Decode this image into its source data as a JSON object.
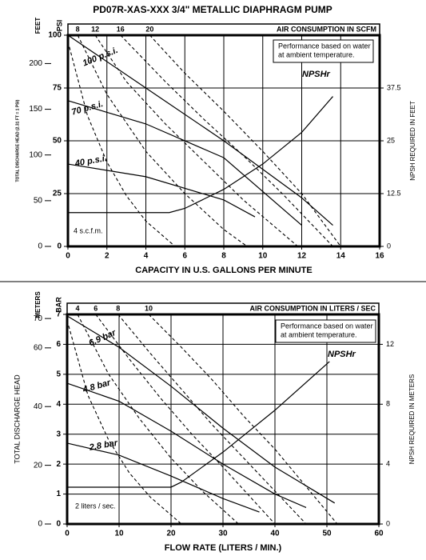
{
  "chart_data": [
    {
      "type": "line",
      "title": "PD07R-XAS-XXX  3/4\" METALLIC DIAPHRAGM PUMP",
      "top_axis_label": "AIR CONSUMPTION IN SCFM",
      "xlabel": "CAPACITY IN U.S. GALLONS PER MINUTE",
      "ylabel": "PSI",
      "head_label": "FEET",
      "head_title": "TOTAL DISCHARGE HEAD (2.31 FT = 1 PSI)",
      "y2label": "NPSH REQUIRED IN FEET",
      "note": [
        "Performance based on water",
        "at ambient temperature."
      ],
      "grid": true,
      "xlim": [
        0,
        16
      ],
      "xticks": [
        0,
        2,
        4,
        6,
        8,
        10,
        12,
        14,
        16
      ],
      "ylim": [
        0,
        100
      ],
      "yticks": [
        0,
        25,
        50,
        75,
        100
      ],
      "head_lim": [
        0,
        231
      ],
      "head_ticks": [
        0,
        50,
        100,
        150,
        200
      ],
      "y2lim": [
        0,
        50
      ],
      "y2ticks": [
        0,
        12.5,
        25,
        37.5
      ],
      "top_ticks": [
        {
          "value": 0.5,
          "label": "8"
        },
        {
          "value": 1.4,
          "label": "12"
        },
        {
          "value": 2.7,
          "label": "16"
        },
        {
          "value": 4.2,
          "label": "20"
        }
      ],
      "series": [
        {
          "name": "100 p.s.i.",
          "color": "#000000",
          "x": [
            0,
            4,
            8,
            12,
            13.6
          ],
          "values": [
            100,
            75,
            50,
            23,
            10
          ]
        },
        {
          "name": "70 p.s.i.",
          "color": "#000000",
          "x": [
            0,
            4,
            8,
            12
          ],
          "values": [
            69,
            58,
            42,
            10
          ]
        },
        {
          "name": "40 p.s.i.",
          "color": "#000000",
          "x": [
            0,
            4,
            8,
            9.6
          ],
          "values": [
            39,
            33,
            22,
            14
          ]
        },
        {
          "name": "NPSHr",
          "color": "#000000",
          "axis": "y2",
          "x": [
            0,
            5.2,
            6,
            8,
            10,
            12,
            13.6
          ],
          "values": [
            8,
            8,
            9,
            13.5,
            19.5,
            27,
            35.5
          ]
        },
        {
          "name": "4 s.c.f.m.",
          "color": "#000000",
          "dash": true,
          "x": [
            0,
            1,
            2,
            3,
            4,
            5.5
          ],
          "values": [
            97,
            62,
            40,
            24,
            12,
            0
          ]
        },
        {
          "color": "#000000",
          "dash": true,
          "x": [
            0.5,
            2,
            4,
            6,
            8,
            9.2
          ],
          "values": [
            100,
            72,
            45,
            25,
            8,
            0
          ]
        },
        {
          "color": "#000000",
          "dash": true,
          "x": [
            1.4,
            3,
            5,
            7,
            9,
            11.8
          ],
          "values": [
            100,
            78,
            58,
            40,
            22,
            0
          ]
        },
        {
          "color": "#000000",
          "dash": true,
          "x": [
            2.7,
            5,
            7,
            9,
            11,
            13.6
          ],
          "values": [
            100,
            78,
            60,
            43,
            25,
            0
          ]
        },
        {
          "color": "#000000",
          "dash": true,
          "x": [
            4.2,
            6,
            8,
            10,
            12,
            14
          ],
          "values": [
            100,
            82,
            64,
            45,
            25,
            0
          ]
        }
      ]
    },
    {
      "type": "line",
      "top_axis_label": "AIR CONSUMPTION IN LITERS / SEC",
      "xlabel": "FLOW RATE (LITERS / MIN.)",
      "ylabel": "BAR",
      "head_label": "METERS",
      "head_title": "TOTAL DISCHARGE HEAD",
      "y2label": "NPSH REQUIRED IN METERS",
      "note": [
        "Performance based on water",
        "at ambient temperature."
      ],
      "grid": true,
      "xlim": [
        0,
        60
      ],
      "xticks": [
        0,
        10,
        20,
        30,
        40,
        50,
        60
      ],
      "ylim": [
        0,
        7
      ],
      "yticks": [
        0,
        1,
        2,
        3,
        4,
        5,
        6,
        7
      ],
      "head_lim": [
        0,
        71.4
      ],
      "head_ticks": [
        0,
        20,
        40,
        60,
        70
      ],
      "y2lim": [
        0,
        14
      ],
      "y2ticks": [
        0,
        4,
        8,
        12
      ],
      "top_ticks": [
        {
          "value": 2,
          "label": "4"
        },
        {
          "value": 5.5,
          "label": "6"
        },
        {
          "value": 9.8,
          "label": "8"
        },
        {
          "value": 15.7,
          "label": "10"
        }
      ],
      "series": [
        {
          "name": "6.9 bar",
          "color": "#000000",
          "x": [
            0,
            10,
            20,
            30,
            40,
            51.5
          ],
          "values": [
            6.95,
            5.9,
            4.6,
            3.2,
            1.9,
            0.7
          ]
        },
        {
          "name": "4.8 bar",
          "color": "#000000",
          "x": [
            0,
            10,
            20,
            30,
            40,
            46
          ],
          "values": [
            4.7,
            4.1,
            3.1,
            2.0,
            1.0,
            0.55
          ]
        },
        {
          "name": "2.8 bar",
          "color": "#000000",
          "x": [
            0,
            10,
            20,
            30,
            37
          ],
          "values": [
            2.7,
            2.3,
            1.6,
            0.85,
            0.4
          ]
        },
        {
          "name": "NPSHr",
          "color": "#000000",
          "axis": "y2",
          "x": [
            0,
            20,
            22,
            30,
            40,
            50.5
          ],
          "values": [
            2.46,
            2.46,
            2.8,
            4.8,
            7.6,
            10.85
          ]
        },
        {
          "name": "2 liters / sec.",
          "color": "#000000",
          "dash": true,
          "x": [
            0,
            4,
            8,
            12,
            16,
            22
          ],
          "values": [
            6.8,
            4.3,
            2.8,
            1.7,
            0.9,
            0
          ]
        },
        {
          "color": "#000000",
          "dash": true,
          "x": [
            2,
            8,
            14,
            20,
            26,
            33
          ],
          "values": [
            7,
            5,
            3.5,
            2.2,
            1.1,
            0
          ]
        },
        {
          "color": "#000000",
          "dash": true,
          "x": [
            5.5,
            12,
            18,
            24,
            30,
            40
          ],
          "values": [
            7,
            5.5,
            4.2,
            3,
            1.9,
            0
          ]
        },
        {
          "color": "#000000",
          "dash": true,
          "x": [
            9.8,
            16,
            22,
            28,
            34,
            46
          ],
          "values": [
            7,
            5.7,
            4.5,
            3.3,
            2.2,
            0
          ]
        },
        {
          "color": "#000000",
          "dash": true,
          "x": [
            15.7,
            22,
            28,
            34,
            40,
            52
          ],
          "values": [
            7,
            5.9,
            4.8,
            3.6,
            2.5,
            0
          ]
        }
      ]
    }
  ]
}
